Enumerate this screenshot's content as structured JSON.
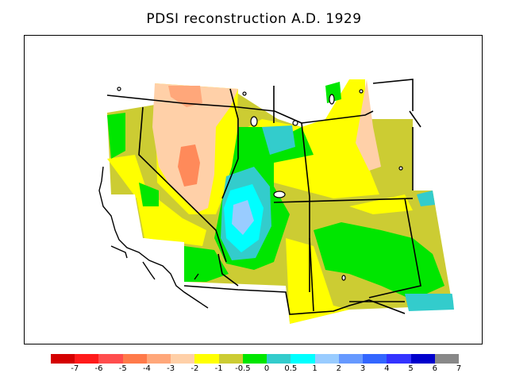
{
  "title": "PDSI reconstruction A.D. 1929",
  "colorbar": {
    "colors": [
      "#d40000",
      "#ff1a1a",
      "#ff4d4d",
      "#ff7a4a",
      "#ffa77a",
      "#ffd0a8",
      "#ffff00",
      "#cccc33",
      "#00e600",
      "#33cccc",
      "#00ffff",
      "#99ccff",
      "#6699ff",
      "#3366ff",
      "#3333ff",
      "#0000cc",
      "#888888"
    ],
    "labels": [
      "-7",
      "-6",
      "-5",
      "-4",
      "-3",
      "-2",
      "-1",
      "-0.5",
      "0",
      "0.5",
      "1",
      "2",
      "3",
      "4",
      "5",
      "6",
      "7"
    ]
  }
}
